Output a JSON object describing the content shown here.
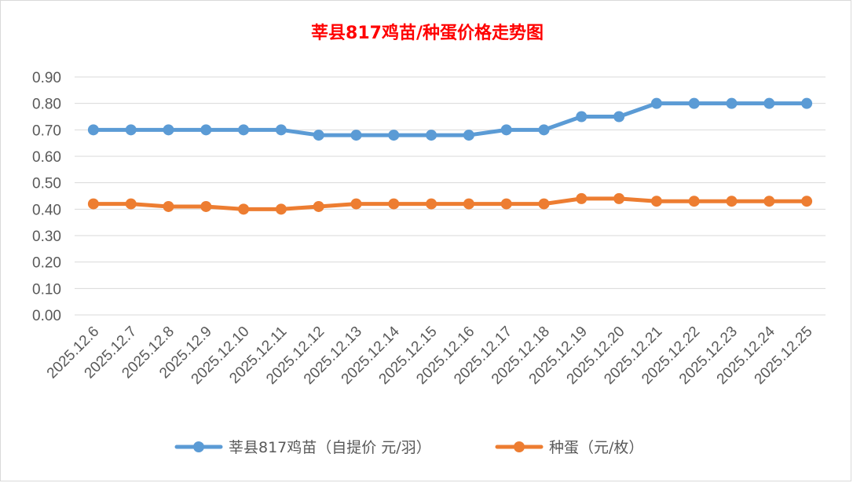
{
  "chart_data": {
    "type": "line",
    "title": "莘县817鸡苗/种蛋价格走势图",
    "xlabel": "",
    "ylabel": "",
    "ylim": [
      0,
      0.9
    ],
    "yticks": [
      "0.00",
      "0.10",
      "0.20",
      "0.30",
      "0.40",
      "0.50",
      "0.60",
      "0.70",
      "0.80",
      "0.90"
    ],
    "grid": true,
    "legend_position": "bottom",
    "categories": [
      "2025.12.6",
      "2025.12.7",
      "2025.12.8",
      "2025.12.9",
      "2025.12.10",
      "2025.12.11",
      "2025.12.12",
      "2025.12.13",
      "2025.12.14",
      "2025.12.15",
      "2025.12.16",
      "2025.12.17",
      "2025.12.18",
      "2025.12.19",
      "2025.12.20",
      "2025.12.21",
      "2025.12.22",
      "2025.12.23",
      "2025.12.24",
      "2025.12.25"
    ],
    "series": [
      {
        "name": "莘县817鸡苗（自提价 元/羽）",
        "color": "#5b9bd5",
        "values": [
          0.7,
          0.7,
          0.7,
          0.7,
          0.7,
          0.7,
          0.68,
          0.68,
          0.68,
          0.68,
          0.68,
          0.7,
          0.7,
          0.75,
          0.75,
          0.8,
          0.8,
          0.8,
          0.8,
          0.8
        ]
      },
      {
        "name": "种蛋（元/枚）",
        "color": "#ed7d31",
        "values": [
          0.42,
          0.42,
          0.41,
          0.41,
          0.4,
          0.4,
          0.41,
          0.42,
          0.42,
          0.42,
          0.42,
          0.42,
          0.42,
          0.44,
          0.44,
          0.43,
          0.43,
          0.43,
          0.43,
          0.43
        ]
      }
    ]
  }
}
